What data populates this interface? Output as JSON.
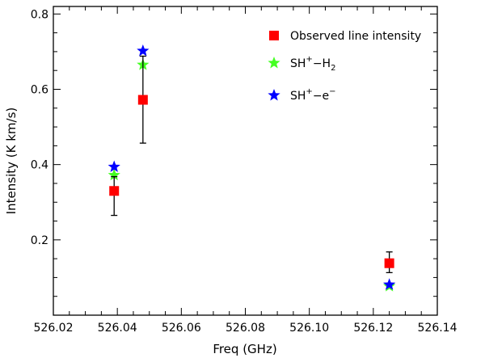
{
  "chart_data": {
    "type": "scatter",
    "title": "",
    "xlabel": "Freq (GHz)",
    "ylabel": "Intensity (K km/s)",
    "xlim": [
      526.02,
      526.14
    ],
    "ylim": [
      0.0,
      0.82
    ],
    "x_ticks": [
      526.02,
      526.04,
      526.06,
      526.08,
      526.1,
      526.12,
      526.14
    ],
    "x_tick_labels": [
      "526.02",
      "526.04",
      "526.06",
      "526.08",
      "526.10",
      "526.12",
      "526.14"
    ],
    "y_ticks": [
      0.2,
      0.4,
      0.6,
      0.8
    ],
    "y_tick_labels": [
      "0.2",
      "0.4",
      "0.6",
      "0.8"
    ],
    "legend_position": "top-right",
    "series": [
      {
        "name": "Observed line intensity",
        "label_parts": {
          "base": "Observed line intensity"
        },
        "marker": "square",
        "color": "#ff0000",
        "points": [
          {
            "x": 526.039,
            "y": 0.33,
            "err_low": 0.265,
            "err_high": 0.368
          },
          {
            "x": 526.048,
            "y": 0.572,
            "err_low": 0.457,
            "err_high": 0.688
          },
          {
            "x": 526.125,
            "y": 0.138,
            "err_low": 0.113,
            "err_high": 0.168
          }
        ]
      },
      {
        "name": "SH+-H2",
        "label_parts": {
          "base": "SH",
          "sup": "+",
          "sep": "−H",
          "sub": "2"
        },
        "marker": "star",
        "color": "#44ff22",
        "points": [
          {
            "x": 526.039,
            "y": 0.372
          },
          {
            "x": 526.048,
            "y": 0.665
          },
          {
            "x": 526.125,
            "y": 0.077
          }
        ]
      },
      {
        "name": "SH+-e-",
        "label_parts": {
          "base": "SH",
          "sup": "+",
          "sep": "−e",
          "sup2": "−"
        },
        "marker": "star",
        "color": "#0000ff",
        "points": [
          {
            "x": 526.039,
            "y": 0.394
          },
          {
            "x": 526.048,
            "y": 0.702
          },
          {
            "x": 526.125,
            "y": 0.081
          }
        ]
      }
    ]
  }
}
